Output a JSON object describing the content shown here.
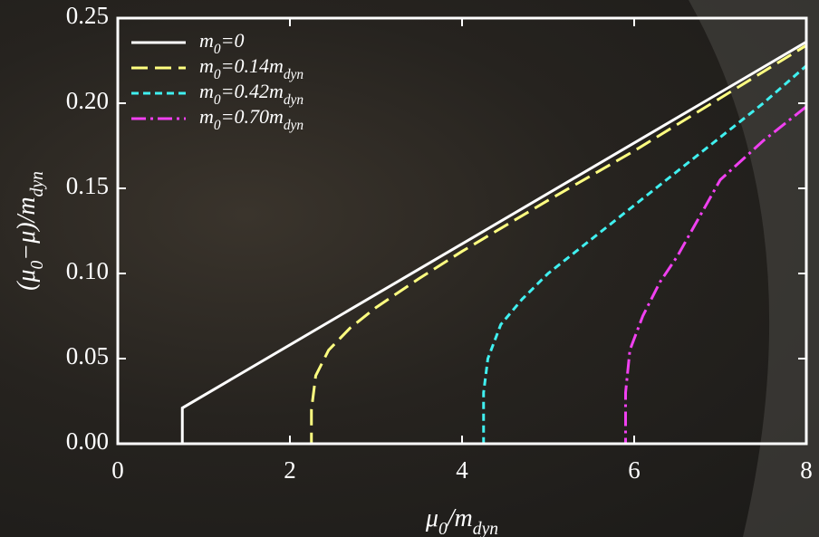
{
  "chart_data": {
    "type": "line",
    "x_label": [
      "μ",
      "0",
      "/m",
      "dyn"
    ],
    "y_label": [
      "(μ",
      "0",
      "−μ)/m",
      "dyn"
    ],
    "xlim": [
      0,
      8
    ],
    "xticks": [
      0,
      2,
      4,
      6,
      8
    ],
    "ylim": [
      0,
      0.25
    ],
    "yticks": [
      {
        "value": 0,
        "label": "0.00"
      },
      {
        "value": 0.05,
        "label": "0.05"
      },
      {
        "value": 0.1,
        "label": "0.10"
      },
      {
        "value": 0.15,
        "label": "0.15"
      },
      {
        "value": 0.2,
        "label": "0.20"
      },
      {
        "value": 0.25,
        "label": "0.25"
      }
    ],
    "legend": "upper left",
    "series": [
      {
        "name": [
          "m",
          "0",
          "=0"
        ],
        "color": "#ffffff",
        "dash": "none",
        "x": [
          0,
          0.75,
          0.75,
          8
        ],
        "values": [
          0,
          0,
          0.021,
          0.236
        ]
      },
      {
        "name": [
          "m",
          "0",
          "=0.14m",
          "dyn"
        ],
        "color": "#ffff80",
        "dash": "18,8",
        "x": [
          0,
          2.25,
          2.25,
          2.3,
          2.45,
          2.7,
          3,
          3.5,
          4,
          5,
          6,
          7,
          8
        ],
        "values": [
          0,
          0,
          0.02,
          0.04,
          0.055,
          0.068,
          0.08,
          0.097,
          0.113,
          0.143,
          0.172,
          0.203,
          0.234
        ]
      },
      {
        "name": [
          "m",
          "0",
          "=0.42m",
          "dyn"
        ],
        "color": "#40f0f0",
        "dash": "8,5",
        "x": [
          0,
          4.25,
          4.25,
          4.3,
          4.45,
          4.7,
          5,
          5.5,
          6,
          6.5,
          7,
          7.5,
          8
        ],
        "values": [
          0,
          0,
          0.03,
          0.05,
          0.07,
          0.085,
          0.1,
          0.12,
          0.14,
          0.16,
          0.18,
          0.2,
          0.222
        ]
      },
      {
        "name": [
          "m",
          "0",
          "=0.70m",
          "dyn"
        ],
        "color": "#f040f0",
        "dash": "16,5,3,5",
        "x": [
          0,
          5.9,
          5.9,
          5.95,
          6.1,
          6.3,
          6.5,
          7,
          7.5,
          8
        ],
        "values": [
          0,
          0,
          0.03,
          0.055,
          0.075,
          0.095,
          0.11,
          0.155,
          0.178,
          0.198
        ]
      }
    ]
  }
}
